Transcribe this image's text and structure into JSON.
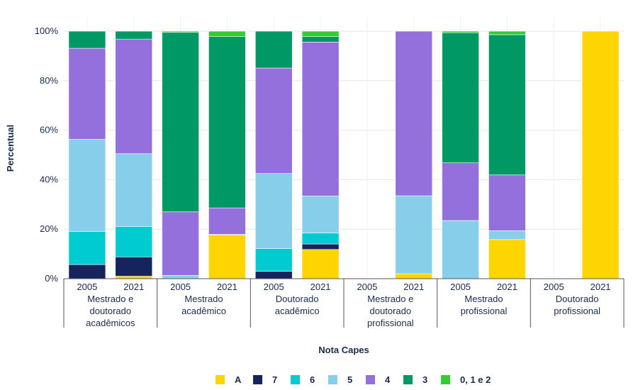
{
  "chart_data": {
    "type": "bar",
    "stacked": true,
    "xlabel": "Nota Capes",
    "ylabel": "Percentual",
    "ylim": [
      0,
      100
    ],
    "yticks": [
      "0%",
      "20%",
      "40%",
      "60%",
      "80%",
      "100%"
    ],
    "grid": true,
    "legend_position": "bottom",
    "groups": [
      {
        "label": "Mestrado e doutorado acadêmicos",
        "lines": [
          "Mestrado e",
          "doutorado",
          "acadêmicos"
        ]
      },
      {
        "label": "Mestrado acadêmico",
        "lines": [
          "Mestrado",
          "acadêmico"
        ]
      },
      {
        "label": "Doutorado acadêmico",
        "lines": [
          "Doutorado",
          "acadêmico"
        ]
      },
      {
        "label": "Mestrado e doutorado profissional",
        "lines": [
          "Mestrado e",
          "doutorado",
          "profissional"
        ]
      },
      {
        "label": "Mestrado profissional",
        "lines": [
          "Mestrado",
          "profissional"
        ]
      },
      {
        "label": "Doutorado profissional",
        "lines": [
          "Doutorado",
          "profissional"
        ]
      }
    ],
    "years": [
      "2005",
      "2021"
    ],
    "series": [
      {
        "name": "A",
        "color": "#ffd500",
        "values": [
          0,
          1,
          0,
          17.6,
          0,
          11.8,
          0,
          2,
          0,
          15.8,
          0,
          100
        ]
      },
      {
        "name": "7",
        "color": "#16245e",
        "values": [
          5.7,
          7.8,
          0,
          0,
          3,
          2.2,
          0,
          0,
          0,
          0,
          0,
          0
        ]
      },
      {
        "name": "6",
        "color": "#00cbd0",
        "values": [
          13.4,
          12.3,
          0,
          0,
          9.2,
          4.5,
          0,
          0,
          0,
          0,
          0,
          0
        ]
      },
      {
        "name": "5",
        "color": "#87ceeb",
        "values": [
          37.2,
          29.4,
          1.3,
          0.3,
          30.3,
          14.9,
          0,
          31.5,
          23.5,
          3.6,
          0,
          0
        ]
      },
      {
        "name": "4",
        "color": "#9370db",
        "values": [
          36.8,
          46.3,
          25.7,
          10.7,
          42.6,
          62.2,
          0,
          66.5,
          23.3,
          22.5,
          0,
          0
        ]
      },
      {
        "name": "3",
        "color": "#009966",
        "values": [
          6.9,
          3.2,
          72.5,
          69.2,
          14.9,
          2.2,
          0,
          0,
          52.6,
          56.7,
          0,
          0
        ]
      },
      {
        "name": "0, 1 e 2",
        "color": "#33cc33",
        "values": [
          0,
          0,
          0.5,
          2.2,
          0,
          2.2,
          0,
          0,
          0.6,
          1.4,
          0,
          0
        ]
      }
    ]
  }
}
